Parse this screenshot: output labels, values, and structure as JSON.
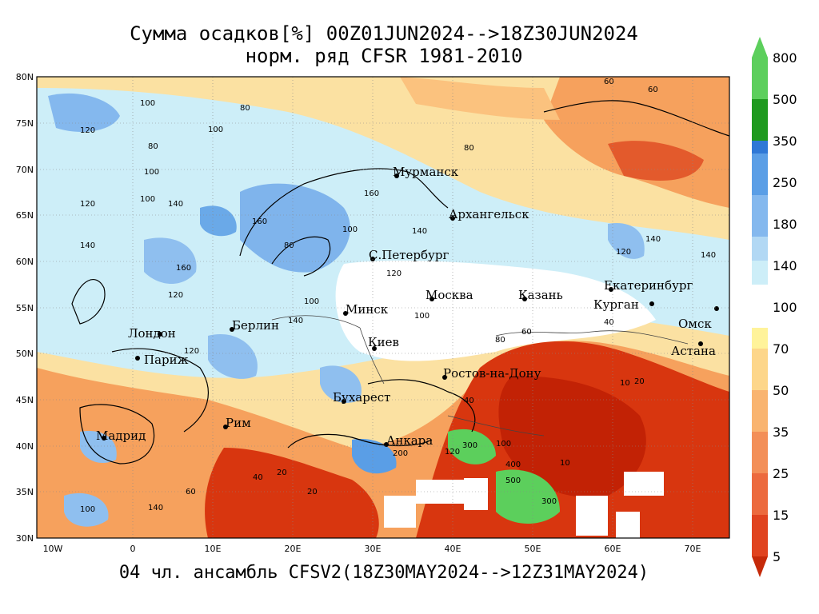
{
  "title_line1": "Сумма осадков[%] 00Z01JUN2024-->18Z30JUN2024",
  "title_line2": "норм. ряд CFSR 1981-2010",
  "footer": "04 чл. ансамбль CFSV2(18Z30MAY2024-->12Z31MAY2024)",
  "lat_labels": [
    "80N",
    "75N",
    "70N",
    "65N",
    "60N",
    "55N",
    "50N",
    "45N",
    "40N",
    "35N",
    "30N"
  ],
  "lon_labels": [
    "10W",
    "0",
    "10E",
    "20E",
    "30E",
    "40E",
    "50E",
    "60E",
    "70E"
  ],
  "cities": [
    {
      "name": "Мурманск"
    },
    {
      "name": "Архангельск"
    },
    {
      "name": "С.Петербург"
    },
    {
      "name": "Москва"
    },
    {
      "name": "Казань"
    },
    {
      "name": "Екатеринбург"
    },
    {
      "name": "Курган"
    },
    {
      "name": "Омск"
    },
    {
      "name": "Астана"
    },
    {
      "name": "Минск"
    },
    {
      "name": "Киев"
    },
    {
      "name": "Берлин"
    },
    {
      "name": "Лондон"
    },
    {
      "name": "Париж"
    },
    {
      "name": "Ростов-на-Дону"
    },
    {
      "name": "Бухарест"
    },
    {
      "name": "Рим"
    },
    {
      "name": "Мадрид"
    },
    {
      "name": "Анкара"
    }
  ],
  "contour_values": [
    "60",
    "60",
    "100",
    "80",
    "100",
    "120",
    "100",
    "80",
    "120",
    "80",
    "100",
    "140",
    "160",
    "140",
    "80",
    "100",
    "120",
    "160",
    "140",
    "120",
    "100",
    "140",
    "120",
    "140",
    "160",
    "120",
    "100",
    "140",
    "60",
    "80",
    "40",
    "10",
    "20",
    "10",
    "20",
    "40",
    "60",
    "20",
    "40",
    "300",
    "400",
    "500",
    "300",
    "200",
    "100",
    "120",
    "140",
    "100"
  ],
  "colorbar": {
    "labels": [
      "800",
      "500",
      "350",
      "250",
      "180",
      "140",
      "100",
      "70",
      "50",
      "35",
      "25",
      "15",
      "5"
    ],
    "colors": [
      "#5ccf5c",
      "#1f9a1f",
      "#2f78d6",
      "#5a9ee6",
      "#84b8ee",
      "#b2d8f4",
      "#cdeef8",
      "#ffffff",
      "#fff39a",
      "#fdd68a",
      "#f9b470",
      "#f38f58",
      "#ec6a3e",
      "#e0431f",
      "#c52a0a"
    ]
  },
  "map_colors": {
    "wet": "#6aa9e8",
    "moist": "#b8daf4",
    "normal": "#ffffff",
    "dry": "#f6a15d",
    "very_dry": "#d8360f",
    "extreme": "#c22205",
    "snow": "#ffffff"
  }
}
